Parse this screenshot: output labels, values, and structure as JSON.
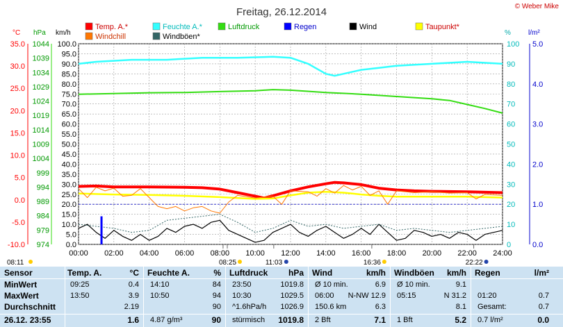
{
  "title": "Freitag, 26.12.2014",
  "copyright": "© Weber Mike",
  "axis_units": {
    "temp": "°C",
    "pressure": "hPa",
    "wind": "km/h",
    "humidity": "%",
    "rain": "l/m²"
  },
  "legend": [
    {
      "name": "Temp. A.*",
      "color": "#ff0000"
    },
    {
      "name": "Feuchte A.*",
      "color": "#33ffff"
    },
    {
      "name": "Luftdruck",
      "color": "#33dd11"
    },
    {
      "name": "Regen",
      "color": "#0000ff"
    },
    {
      "name": "Wind",
      "color": "#000000"
    },
    {
      "name": "Taupunkt*",
      "color": "#ffff00"
    },
    {
      "name": "Windchill",
      "color": "#ff7700"
    },
    {
      "name": "Windböen*",
      "color": "#336666"
    }
  ],
  "sun_events": {
    "sunrise": "08:11",
    "sunset": "16:36",
    "moonrise": "11:03",
    "moonset": "22:22",
    "twilight": "08:25"
  },
  "chart_data": {
    "type": "line",
    "x_unit": "time of day",
    "x_ticks": [
      "00:00",
      "02:00",
      "04:00",
      "06:00",
      "08:00",
      "10:00",
      "12:00",
      "14:00",
      "16:00",
      "18:00",
      "20:00",
      "22:00",
      "24:00"
    ],
    "axes": {
      "temp_c": {
        "range": [
          -10,
          35
        ],
        "ticks": [
          "35.0",
          "30.0",
          "25.0",
          "20.0",
          "15.0",
          "10.0",
          "5.0",
          "0.0",
          "-5.0",
          "-10.0"
        ]
      },
      "pressure_hpa": {
        "range": [
          974,
          1044
        ],
        "ticks": [
          "1044",
          "1039",
          "1034",
          "1029",
          "1024",
          "1019",
          "1014",
          "1009",
          "1004",
          "999",
          "994",
          "989",
          "984",
          "979",
          "974"
        ]
      },
      "wind_kmh": {
        "range": [
          0,
          100
        ],
        "ticks": [
          "100.0",
          "95.0",
          "90.0",
          "85.0",
          "80.0",
          "75.0",
          "70.0",
          "65.0",
          "60.0",
          "55.0",
          "50.0",
          "45.0",
          "40.0",
          "35.0",
          "30.0",
          "25.0",
          "20.0",
          "15.0",
          "10.0",
          "5.0",
          "0.0"
        ]
      },
      "humidity_pct": {
        "range": [
          0,
          100
        ],
        "ticks": [
          "100",
          "90",
          "80",
          "70",
          "60",
          "50",
          "40",
          "30",
          "20",
          "10",
          "0"
        ]
      },
      "rain_lm2": {
        "range": [
          0,
          5
        ],
        "ticks": [
          "5.0",
          "4.0",
          "3.0",
          "2.0",
          "1.0",
          "0.0"
        ]
      }
    },
    "series": [
      {
        "name": "Temp. A.*",
        "axis": "temp_c",
        "color": "#ff0000",
        "points": [
          [
            0,
            3.0
          ],
          [
            1,
            3.1
          ],
          [
            2,
            2.9
          ],
          [
            4,
            2.9
          ],
          [
            6,
            2.8
          ],
          [
            7,
            2.7
          ],
          [
            8,
            2.4
          ],
          [
            9,
            1.6
          ],
          [
            10,
            0.8
          ],
          [
            10.5,
            0.4
          ],
          [
            11,
            0.9
          ],
          [
            12,
            2.0
          ],
          [
            13,
            2.9
          ],
          [
            14,
            3.6
          ],
          [
            14.5,
            3.9
          ],
          [
            15,
            3.8
          ],
          [
            16,
            3.4
          ],
          [
            17,
            2.6
          ],
          [
            18,
            2.2
          ],
          [
            19,
            2.0
          ],
          [
            20,
            1.9
          ],
          [
            22,
            1.8
          ],
          [
            24,
            1.6
          ]
        ]
      },
      {
        "name": "Taupunkt*",
        "axis": "temp_c",
        "color": "#ffff00",
        "points": [
          [
            0,
            1.4
          ],
          [
            2,
            1.2
          ],
          [
            4,
            1.1
          ],
          [
            6,
            0.9
          ],
          [
            8,
            0.6
          ],
          [
            10,
            0.2
          ],
          [
            11,
            0.3
          ],
          [
            12,
            1.0
          ],
          [
            13,
            1.6
          ],
          [
            14,
            1.8
          ],
          [
            15,
            1.6
          ],
          [
            16,
            1.2
          ],
          [
            17,
            0.9
          ],
          [
            18,
            0.7
          ],
          [
            20,
            0.7
          ],
          [
            22,
            0.7
          ],
          [
            24,
            0.5
          ]
        ]
      },
      {
        "name": "Feuchte A.*",
        "axis": "humidity_pct",
        "color": "#33ffff",
        "points": [
          [
            0,
            90
          ],
          [
            1,
            91
          ],
          [
            3,
            92
          ],
          [
            5,
            92
          ],
          [
            7,
            93
          ],
          [
            9,
            93
          ],
          [
            11,
            93.5
          ],
          [
            12,
            93
          ],
          [
            13,
            90
          ],
          [
            14,
            85
          ],
          [
            14.5,
            84
          ],
          [
            15,
            85
          ],
          [
            16,
            87
          ],
          [
            17,
            88
          ],
          [
            18,
            89
          ],
          [
            20,
            90
          ],
          [
            22,
            91
          ],
          [
            24,
            90
          ]
        ]
      },
      {
        "name": "Luftdruck",
        "axis": "pressure_hpa",
        "color": "#33dd11",
        "points": [
          [
            0,
            1026.4
          ],
          [
            2,
            1026.6
          ],
          [
            4,
            1026.9
          ],
          [
            6,
            1027.0
          ],
          [
            8,
            1027.3
          ],
          [
            10,
            1027.6
          ],
          [
            11,
            1028.0
          ],
          [
            12,
            1027.8
          ],
          [
            14,
            1027.0
          ],
          [
            16,
            1026.4
          ],
          [
            18,
            1025.6
          ],
          [
            20,
            1024.8
          ],
          [
            21,
            1024.2
          ],
          [
            22,
            1022.8
          ],
          [
            23,
            1021.4
          ],
          [
            24,
            1019.8
          ]
        ]
      },
      {
        "name": "Wind",
        "axis": "wind_kmh",
        "color": "#000000",
        "points": [
          [
            0,
            8
          ],
          [
            0.5,
            10
          ],
          [
            1,
            6
          ],
          [
            1.5,
            3
          ],
          [
            2,
            7
          ],
          [
            2.5,
            4
          ],
          [
            3,
            2
          ],
          [
            3.5,
            5
          ],
          [
            4,
            2
          ],
          [
            4.5,
            4
          ],
          [
            5,
            8
          ],
          [
            5.5,
            6
          ],
          [
            6,
            9
          ],
          [
            6.5,
            10
          ],
          [
            7,
            8
          ],
          [
            7.5,
            11
          ],
          [
            8,
            12
          ],
          [
            8.5,
            7
          ],
          [
            9,
            5
          ],
          [
            9.5,
            3
          ],
          [
            10,
            1
          ],
          [
            10.5,
            2
          ],
          [
            11,
            6
          ],
          [
            11.5,
            8
          ],
          [
            12,
            10
          ],
          [
            12.5,
            6
          ],
          [
            13,
            4
          ],
          [
            13.5,
            7
          ],
          [
            14,
            9
          ],
          [
            14.5,
            6
          ],
          [
            15,
            3
          ],
          [
            15.5,
            5
          ],
          [
            16,
            8
          ],
          [
            16.5,
            5
          ],
          [
            17,
            10
          ],
          [
            17.5,
            6
          ],
          [
            18,
            2
          ],
          [
            18.5,
            3
          ],
          [
            19,
            7
          ],
          [
            19.5,
            6
          ],
          [
            20,
            4
          ],
          [
            20.5,
            5
          ],
          [
            21,
            3
          ],
          [
            21.5,
            6
          ],
          [
            22,
            5
          ],
          [
            22.5,
            2
          ],
          [
            23,
            5
          ],
          [
            23.5,
            6
          ],
          [
            24,
            7
          ]
        ]
      },
      {
        "name": "Windböen*",
        "axis": "wind_kmh",
        "color": "#336666",
        "points": [
          [
            0,
            10
          ],
          [
            1,
            9
          ],
          [
            2,
            8
          ],
          [
            3,
            6
          ],
          [
            4,
            7
          ],
          [
            5,
            12
          ],
          [
            6,
            13
          ],
          [
            7,
            14
          ],
          [
            8,
            15
          ],
          [
            9,
            11
          ],
          [
            10,
            6
          ],
          [
            11,
            8
          ],
          [
            12,
            12
          ],
          [
            13,
            9
          ],
          [
            14,
            10
          ],
          [
            15,
            8
          ],
          [
            16,
            9
          ],
          [
            17,
            10
          ],
          [
            18,
            7
          ],
          [
            19,
            8
          ],
          [
            20,
            7
          ],
          [
            21,
            6
          ],
          [
            22,
            7
          ],
          [
            23,
            8
          ],
          [
            24,
            9
          ]
        ]
      },
      {
        "name": "Windchill",
        "axis": "temp_c",
        "color": "#ff7700",
        "points": [
          [
            0,
            2.5
          ],
          [
            0.5,
            0.5
          ],
          [
            1,
            2.8
          ],
          [
            1.5,
            2.0
          ],
          [
            2,
            2.6
          ],
          [
            2.5,
            0.8
          ],
          [
            3,
            1.0
          ],
          [
            3.5,
            2.5
          ],
          [
            4,
            0.5
          ],
          [
            4.5,
            -1.5
          ],
          [
            5,
            -2.0
          ],
          [
            5.5,
            -1.5
          ],
          [
            6,
            -2.5
          ],
          [
            6.5,
            -1.8
          ],
          [
            7,
            -1.5
          ],
          [
            7.5,
            -2.5
          ],
          [
            8,
            -3.0
          ],
          [
            8.5,
            -0.5
          ],
          [
            9,
            1.0
          ],
          [
            10,
            0.4
          ],
          [
            11,
            0.8
          ],
          [
            11.5,
            -1.0
          ],
          [
            12,
            2.0
          ],
          [
            13,
            1.8
          ],
          [
            13.5,
            0.8
          ],
          [
            14,
            2.5
          ],
          [
            14.5,
            1.5
          ],
          [
            15,
            3.2
          ],
          [
            15.5,
            2.2
          ],
          [
            16,
            3.0
          ],
          [
            16.5,
            1.0
          ],
          [
            17,
            2.0
          ],
          [
            17.5,
            -1.0
          ],
          [
            18,
            2.0
          ],
          [
            19,
            1.6
          ],
          [
            20,
            1.8
          ],
          [
            21,
            1.5
          ],
          [
            22,
            1.6
          ],
          [
            22.5,
            0.2
          ],
          [
            23,
            1.2
          ],
          [
            24,
            1.0
          ]
        ]
      },
      {
        "name": "Regen",
        "axis": "rain_lm2",
        "color": "#0000ff",
        "type": "bar",
        "points": [
          [
            1.3,
            0.7
          ]
        ]
      }
    ],
    "reference_lines": [
      {
        "axis": "rain_lm2",
        "value": 1.0,
        "color": "#3333cc",
        "style": "dashed"
      }
    ]
  },
  "stats": {
    "row_labels": [
      "Sensor",
      "MinWert",
      "MaxWert",
      "Durchschnitt",
      "26.12. 23:55"
    ],
    "columns": [
      {
        "header": "Temp. A.",
        "unit": "°C",
        "rows": [
          [
            "09:25",
            "0.4"
          ],
          [
            "13:50",
            "3.9"
          ],
          [
            "",
            "2.19"
          ],
          [
            "",
            "1.6"
          ]
        ]
      },
      {
        "header": "Feuchte A.",
        "unit": "%",
        "rows": [
          [
            "14:10",
            "84"
          ],
          [
            "10:50",
            "94"
          ],
          [
            "",
            "90"
          ],
          [
            "4.87 g/m³",
            "90"
          ]
        ]
      },
      {
        "header": "Luftdruck",
        "unit": "hPa",
        "rows": [
          [
            "23:50",
            "1019.8"
          ],
          [
            "10:30",
            "1029.5"
          ],
          [
            "^1.6hPa/h",
            "1026.9"
          ],
          [
            "stürmisch",
            "1019.8"
          ]
        ]
      },
      {
        "header": "Wind",
        "unit": "km/h",
        "rows": [
          [
            "Ø 10 min.",
            "6.9"
          ],
          [
            "06:00",
            "N-NW 12.9"
          ],
          [
            "150.6 km",
            "6.3"
          ],
          [
            "2 Bft",
            "7.1"
          ]
        ]
      },
      {
        "header": "Windböen",
        "unit": "km/h",
        "rows": [
          [
            "Ø 10 min.",
            "9.1"
          ],
          [
            "05:15",
            "N 31.2"
          ],
          [
            "",
            "8.1"
          ],
          [
            "1 Bft",
            "5.2"
          ]
        ]
      },
      {
        "header": "Regen",
        "unit": "l/m²",
        "rows": [
          [
            "",
            ""
          ],
          [
            "01:20",
            "0.7"
          ],
          [
            "Gesamt:",
            "0.7"
          ],
          [
            "0.7 l/m²",
            "0.0"
          ]
        ]
      }
    ]
  }
}
